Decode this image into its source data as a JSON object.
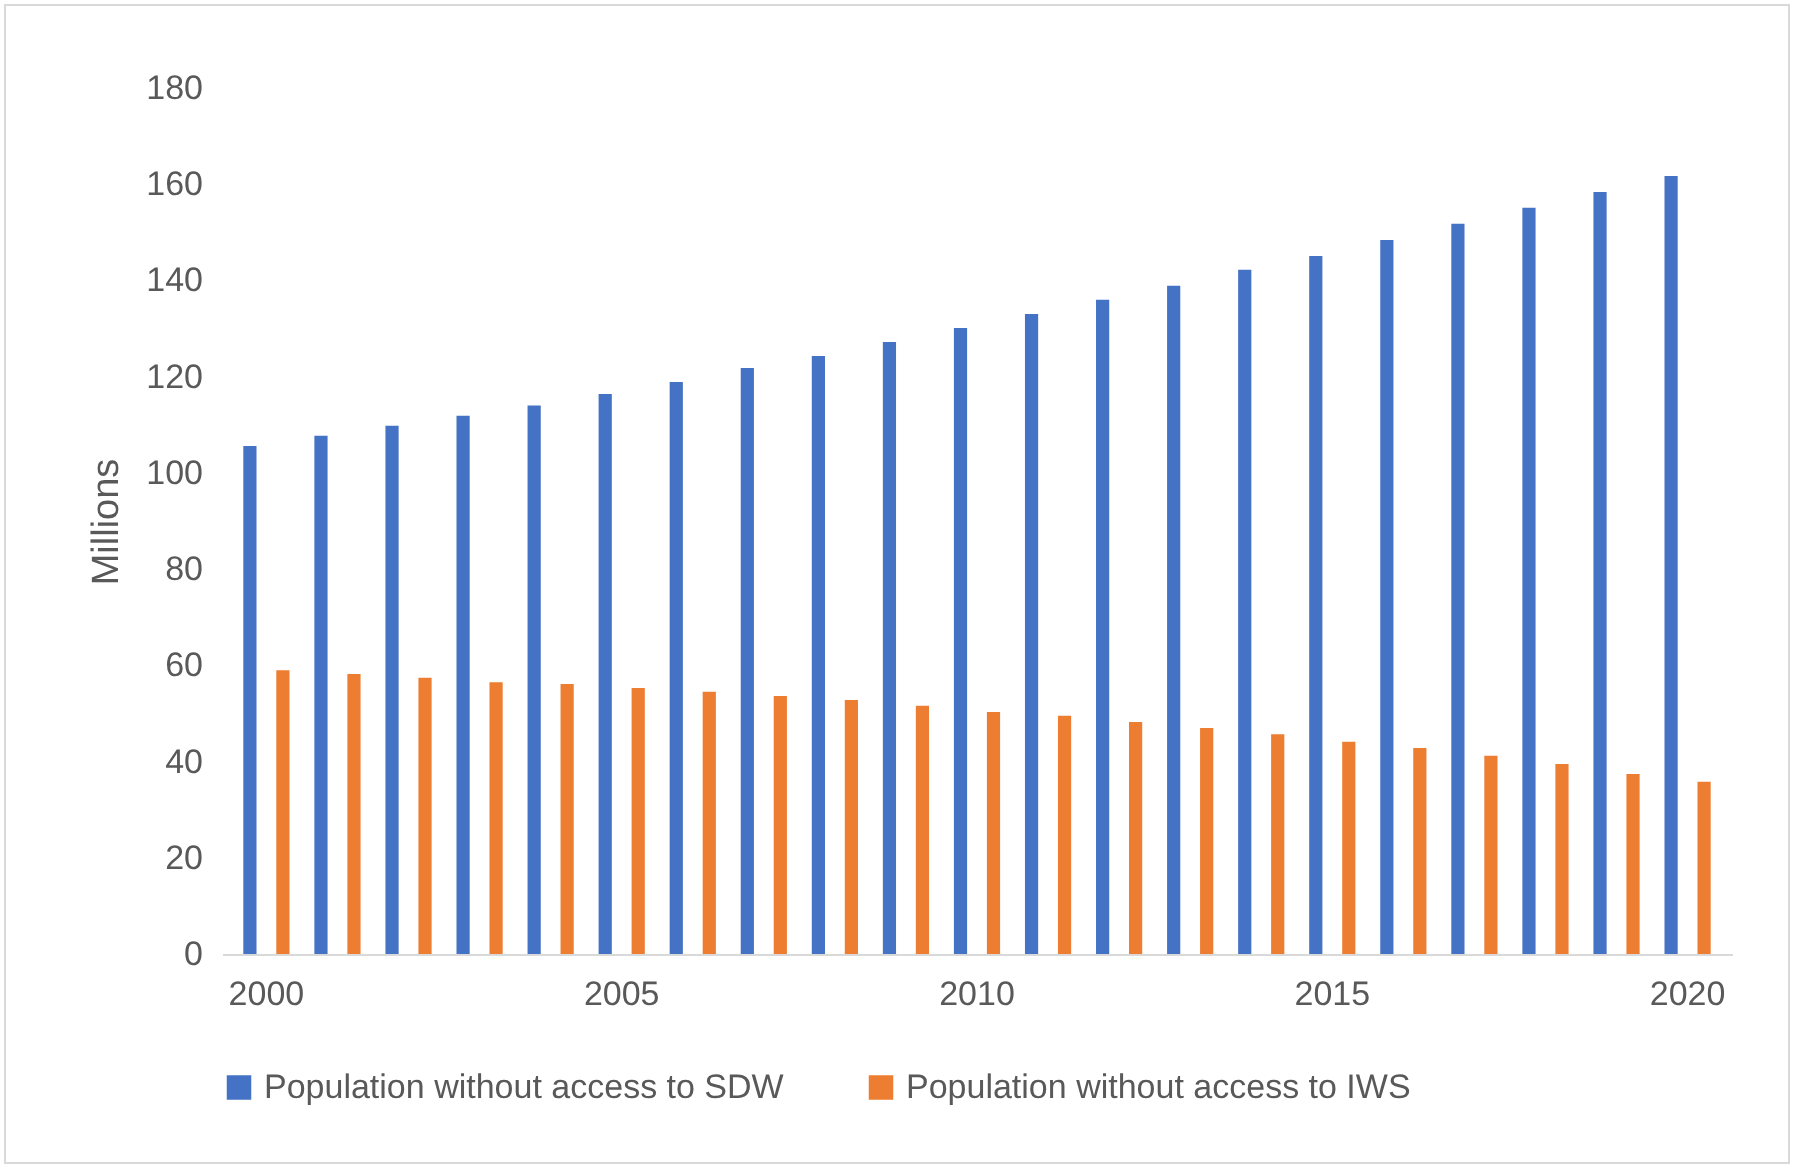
{
  "chart_data": {
    "type": "bar",
    "ylabel": "Millions",
    "categories": [
      "2000",
      null,
      null,
      null,
      null,
      "2005",
      null,
      null,
      null,
      null,
      "2010",
      null,
      null,
      null,
      null,
      "2015",
      null,
      null,
      null,
      null,
      "2020"
    ],
    "series": [
      {
        "name": "Population without access to SDW",
        "color": "#4472c4",
        "values": [
          105.6,
          107.7,
          109.8,
          111.9,
          114,
          116.4,
          118.9,
          121.8,
          124.3,
          127.2,
          130.1,
          133,
          136,
          138.9,
          142.2,
          145.1,
          148.4,
          151.8,
          155.1,
          158.4,
          161.7
        ]
      },
      {
        "name": "Population without access to IWS",
        "color": "#ed7d31",
        "values": [
          59,
          58.2,
          57.4,
          56.5,
          56.1,
          55.3,
          54.5,
          53.6,
          52.8,
          51.6,
          50.3,
          49.5,
          48.2,
          47,
          45.7,
          44.1,
          42.8,
          41.2,
          39.5,
          37.4,
          35.8
        ]
      }
    ],
    "ylim": [
      0,
      180
    ],
    "yticks": [
      0,
      20,
      40,
      60,
      80,
      100,
      120,
      140,
      160,
      180
    ],
    "legend": "bottom"
  }
}
